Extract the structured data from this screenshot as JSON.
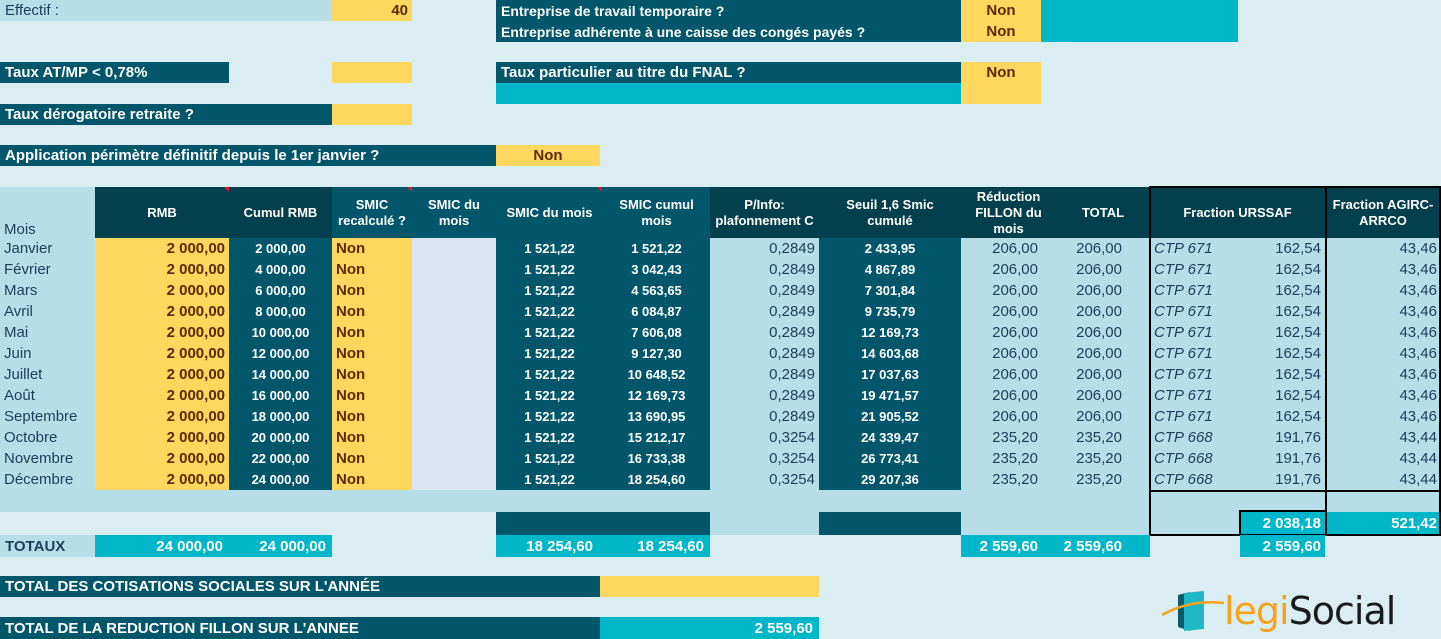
{
  "top": {
    "effectif_label": "Effectif :",
    "effectif_value": "40",
    "atmp_label": "Taux AT/MP < 0,78%",
    "atmp_value": "",
    "derog_label": "Taux dérogatoire retraite ?",
    "derog_value": "",
    "perimetre_label": "Application périmètre définitif depuis le 1er janvier ?",
    "perimetre_value": "Non",
    "temp_label": "Entreprise de travail temporaire ?",
    "temp_value": "Non",
    "conges_label": "Entreprise adhérente à une caisse des congés payés ?",
    "conges_value": "Non",
    "fnal_label": "Taux particulier au titre du FNAL ?",
    "fnal_value": "Non"
  },
  "table": {
    "headers": {
      "mois": "Mois",
      "rmb": "RMB",
      "cumul_rmb": "Cumul RMB",
      "smic_recalc": "SMIC recalculé ?",
      "smic_du_mois_input": "SMIC du mois",
      "smic_du_mois": "SMIC du mois",
      "smic_cumul": "SMIC cumul mois",
      "pinfo": "P/Info: plafonnement C",
      "seuil": "Seuil 1,6 Smic cumulé",
      "reduction": "Réduction FILLON du mois",
      "total": "TOTAL",
      "urssaf": "Fraction URSSAF",
      "agirc": "Fraction AGIRC-ARRCO"
    },
    "rows": [
      {
        "mois": "Janvier",
        "rmb": "2 000,00",
        "cumul": "2 000,00",
        "recalc": "Non",
        "smic": "1 521,22",
        "smic_cumul": "1 521,22",
        "pinfo": "0,2849",
        "seuil": "2 433,95",
        "red": "206,00",
        "total": "206,00",
        "ctp": "CTP 671",
        "urssaf": "162,54",
        "agirc": "43,46"
      },
      {
        "mois": "Février",
        "rmb": "2 000,00",
        "cumul": "4 000,00",
        "recalc": "Non",
        "smic": "1 521,22",
        "smic_cumul": "3 042,43",
        "pinfo": "0,2849",
        "seuil": "4 867,89",
        "red": "206,00",
        "total": "206,00",
        "ctp": "CTP 671",
        "urssaf": "162,54",
        "agirc": "43,46"
      },
      {
        "mois": "Mars",
        "rmb": "2 000,00",
        "cumul": "6 000,00",
        "recalc": "Non",
        "smic": "1 521,22",
        "smic_cumul": "4 563,65",
        "pinfo": "0,2849",
        "seuil": "7 301,84",
        "red": "206,00",
        "total": "206,00",
        "ctp": "CTP 671",
        "urssaf": "162,54",
        "agirc": "43,46"
      },
      {
        "mois": "Avril",
        "rmb": "2 000,00",
        "cumul": "8 000,00",
        "recalc": "Non",
        "smic": "1 521,22",
        "smic_cumul": "6 084,87",
        "pinfo": "0,2849",
        "seuil": "9 735,79",
        "red": "206,00",
        "total": "206,00",
        "ctp": "CTP 671",
        "urssaf": "162,54",
        "agirc": "43,46"
      },
      {
        "mois": "Mai",
        "rmb": "2 000,00",
        "cumul": "10 000,00",
        "recalc": "Non",
        "smic": "1 521,22",
        "smic_cumul": "7 606,08",
        "pinfo": "0,2849",
        "seuil": "12 169,73",
        "red": "206,00",
        "total": "206,00",
        "ctp": "CTP 671",
        "urssaf": "162,54",
        "agirc": "43,46"
      },
      {
        "mois": "Juin",
        "rmb": "2 000,00",
        "cumul": "12 000,00",
        "recalc": "Non",
        "smic": "1 521,22",
        "smic_cumul": "9 127,30",
        "pinfo": "0,2849",
        "seuil": "14 603,68",
        "red": "206,00",
        "total": "206,00",
        "ctp": "CTP 671",
        "urssaf": "162,54",
        "agirc": "43,46"
      },
      {
        "mois": "Juillet",
        "rmb": "2 000,00",
        "cumul": "14 000,00",
        "recalc": "Non",
        "smic": "1 521,22",
        "smic_cumul": "10 648,52",
        "pinfo": "0,2849",
        "seuil": "17 037,63",
        "red": "206,00",
        "total": "206,00",
        "ctp": "CTP 671",
        "urssaf": "162,54",
        "agirc": "43,46"
      },
      {
        "mois": "Août",
        "rmb": "2 000,00",
        "cumul": "16 000,00",
        "recalc": "Non",
        "smic": "1 521,22",
        "smic_cumul": "12 169,73",
        "pinfo": "0,2849",
        "seuil": "19 471,57",
        "red": "206,00",
        "total": "206,00",
        "ctp": "CTP 671",
        "urssaf": "162,54",
        "agirc": "43,46"
      },
      {
        "mois": "Septembre",
        "rmb": "2 000,00",
        "cumul": "18 000,00",
        "recalc": "Non",
        "smic": "1 521,22",
        "smic_cumul": "13 690,95",
        "pinfo": "0,2849",
        "seuil": "21 905,52",
        "red": "206,00",
        "total": "206,00",
        "ctp": "CTP 671",
        "urssaf": "162,54",
        "agirc": "43,46"
      },
      {
        "mois": "Octobre",
        "rmb": "2 000,00",
        "cumul": "20 000,00",
        "recalc": "Non",
        "smic": "1 521,22",
        "smic_cumul": "15 212,17",
        "pinfo": "0,3254",
        "seuil": "24 339,47",
        "red": "235,20",
        "total": "235,20",
        "ctp": "CTP 668",
        "urssaf": "191,76",
        "agirc": "43,44"
      },
      {
        "mois": "Novembre",
        "rmb": "2 000,00",
        "cumul": "22 000,00",
        "recalc": "Non",
        "smic": "1 521,22",
        "smic_cumul": "16 733,38",
        "pinfo": "0,3254",
        "seuil": "26 773,41",
        "red": "235,20",
        "total": "235,20",
        "ctp": "CTP 668",
        "urssaf": "191,76",
        "agirc": "43,44"
      },
      {
        "mois": "Décembre",
        "rmb": "2 000,00",
        "cumul": "24 000,00",
        "recalc": "Non",
        "smic": "1 521,22",
        "smic_cumul": "18 254,60",
        "pinfo": "0,3254",
        "seuil": "29 207,36",
        "red": "235,20",
        "total": "235,20",
        "ctp": "CTP 668",
        "urssaf": "191,76",
        "agirc": "43,44"
      }
    ],
    "subtotal": {
      "urssaf": "2 038,18",
      "agirc": "521,42"
    },
    "totaux": {
      "label": "TOTAUX",
      "rmb": "24 000,00",
      "cumul": "24 000,00",
      "smic": "18 254,60",
      "smic_cumul": "18 254,60",
      "red": "2 559,60",
      "total": "2 559,60",
      "fractions": "2 559,60"
    }
  },
  "footer": {
    "cotisations_label": "TOTAL DES COTISATIONS SOCIALES SUR L'ANNÉE",
    "cotisations_value": "",
    "fillon_label": "TOTAL DE LA REDUCTION FILLON SUR L'ANNEE",
    "fillon_value": "2 559,60"
  },
  "logo": {
    "part1": "legi",
    "part2": "Social",
    "icon": "legisocial-logo-icon"
  },
  "colors": {
    "dark": "#02566a",
    "darker": "#043f4d",
    "yellow": "#fed75e",
    "cyan": "#00b7c9",
    "light": "#b6dde8",
    "bg": "#daedf3"
  }
}
